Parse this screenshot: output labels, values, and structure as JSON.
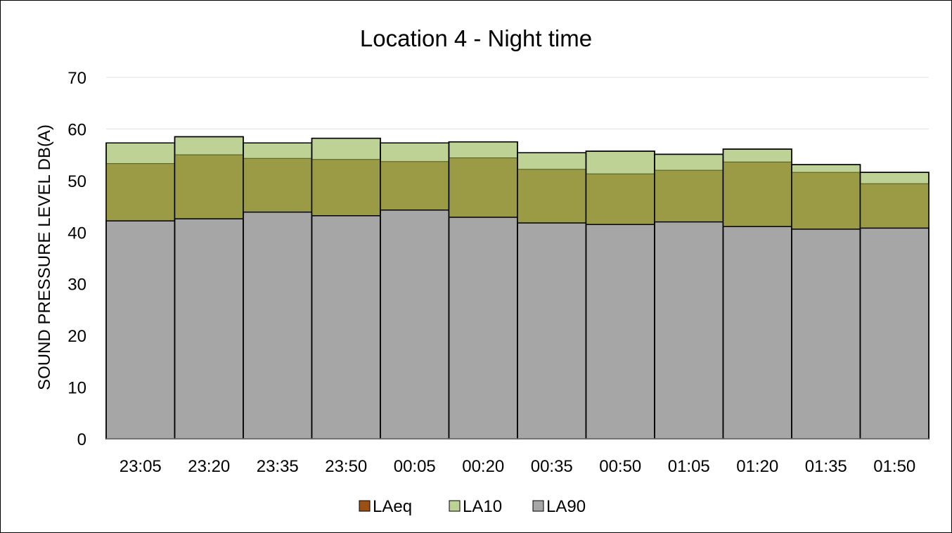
{
  "chart_data": {
    "type": "bar",
    "stacked": false,
    "overlapping_bars": true,
    "title": "Location 4 - Night time",
    "xlabel": "",
    "ylabel": "SOUND PRESSURE LEVEL DB(A)",
    "ylim": [
      0,
      70
    ],
    "yticks": [
      0,
      10,
      20,
      30,
      40,
      50,
      60,
      70
    ],
    "grid": true,
    "legend_position": "bottom",
    "categories": [
      "23:05",
      "23:20",
      "23:35",
      "23:50",
      "00:05",
      "00:20",
      "00:35",
      "00:50",
      "01:05",
      "01:20",
      "01:35",
      "01:50"
    ],
    "series": [
      {
        "name": "LAeq",
        "color": "#9C5013",
        "values": [
          53.3,
          55.0,
          54.3,
          54.1,
          53.7,
          54.4,
          52.2,
          51.3,
          52.0,
          53.6,
          51.6,
          49.4
        ]
      },
      {
        "name": "LA10",
        "color": "#BDD294",
        "values": [
          57.3,
          58.5,
          57.3,
          58.2,
          57.3,
          57.5,
          55.4,
          55.7,
          55.1,
          56.1,
          53.1,
          51.6
        ]
      },
      {
        "name": "LA90",
        "color": "#A6A6A6",
        "values": [
          42.2,
          42.6,
          43.9,
          43.2,
          44.3,
          42.9,
          41.8,
          41.5,
          42.0,
          41.1,
          40.6,
          40.8
        ]
      }
    ],
    "overlap_color": "#9A9B44"
  }
}
